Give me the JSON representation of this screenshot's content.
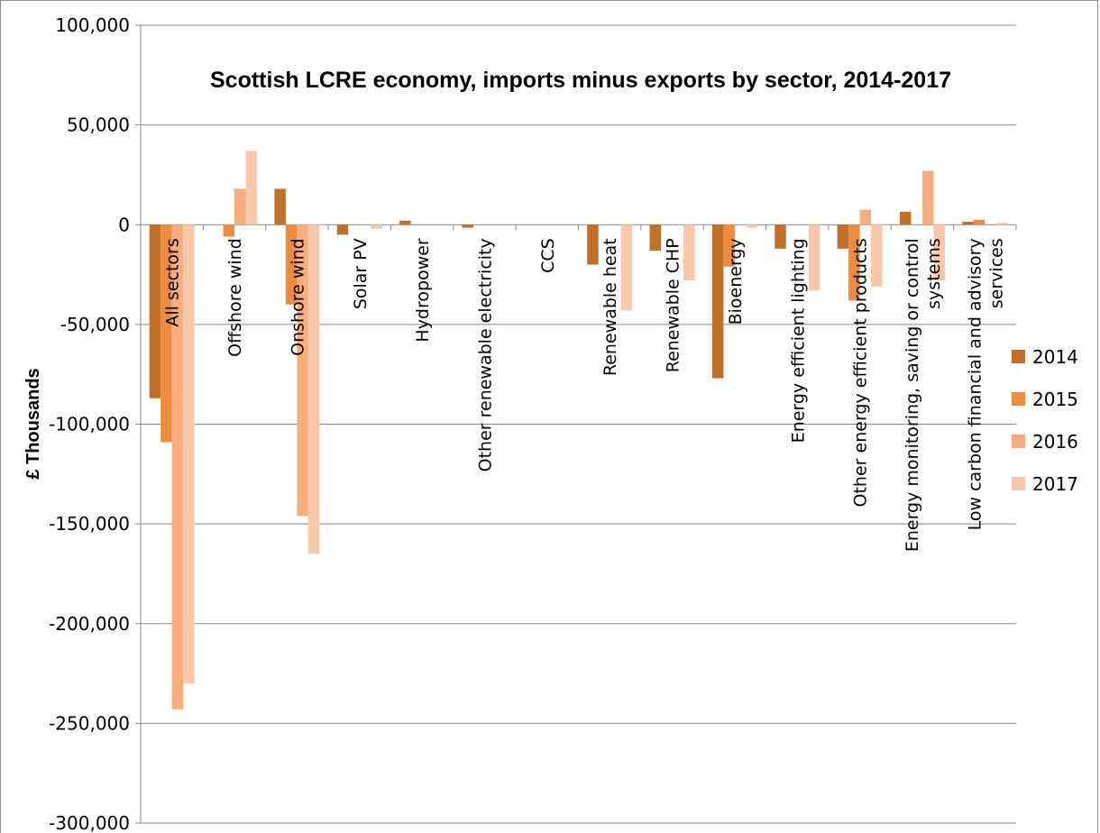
{
  "chart_data": {
    "type": "bar",
    "title": "Scottish LCRE economy, imports minus exports by sector, 2014-2017",
    "xlabel": "",
    "ylabel": "£ Thousands",
    "ylim": [
      -300000,
      100000
    ],
    "yticks": [
      100000,
      50000,
      0,
      -50000,
      -100000,
      -150000,
      -200000,
      -250000,
      -300000
    ],
    "ytick_labels": [
      "100,000",
      "50,000",
      "0",
      "-50,000",
      "-100,000",
      "-150,000",
      "-200,000",
      "-250,000",
      "-300,000"
    ],
    "grid": true,
    "legend_position": "right",
    "categories": [
      "All sectors",
      "Offshore wind",
      "Onshore wind",
      "Solar PV",
      "Hydropower",
      "Other renewable electricity",
      "CCS",
      "Renewable heat",
      "Renewable CHP",
      "Bioenergy",
      "Energy efficient lighting",
      "Other energy efficient products",
      "Energy monitoring, saving or control systems",
      "Low carbon financial and advisory services"
    ],
    "category_label_lines": [
      [
        "All sectors"
      ],
      [
        "Offshore wind"
      ],
      [
        "Onshore wind"
      ],
      [
        "Solar PV"
      ],
      [
        "Hydropower"
      ],
      [
        "Other renewable electricity"
      ],
      [
        "CCS"
      ],
      [
        "Renewable heat"
      ],
      [
        "Renewable CHP"
      ],
      [
        "Bioenergy"
      ],
      [
        "Energy efficient lighting"
      ],
      [
        "Other energy efficient products"
      ],
      [
        "Energy monitoring, saving or control",
        "systems"
      ],
      [
        "Low carbon financial and advisory",
        "services"
      ]
    ],
    "series": [
      {
        "name": "2014",
        "color": "#c0702a",
        "values": [
          -87000,
          0,
          18000,
          -5000,
          2000,
          -1500,
          0,
          -20000,
          -13000,
          -77000,
          -12000,
          -12000,
          6500,
          1500
        ]
      },
      {
        "name": "2015",
        "color": "#ed8c3e",
        "values": [
          -109000,
          -6000,
          -40000,
          0,
          0,
          0,
          0,
          0,
          0,
          -21000,
          0,
          -38000,
          0,
          2500
        ]
      },
      {
        "name": "2016",
        "color": "#f7ae7f",
        "values": [
          -243000,
          18000,
          -146000,
          0,
          0,
          0,
          0,
          0,
          0,
          0,
          0,
          7500,
          27000,
          0
        ]
      },
      {
        "name": "2017",
        "color": "#f9c8ab",
        "values": [
          -230000,
          37000,
          -165000,
          -2000,
          0,
          0,
          0,
          -43000,
          -28000,
          -1500,
          -33000,
          -31000,
          -28000,
          1000
        ]
      }
    ]
  }
}
